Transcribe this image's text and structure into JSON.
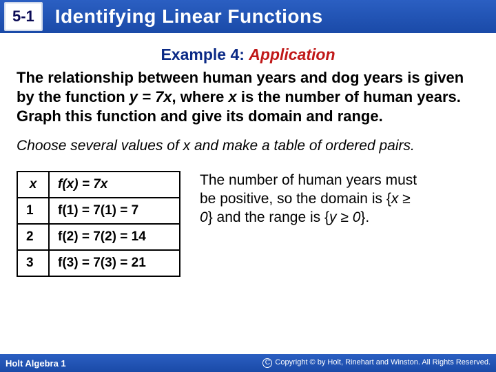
{
  "header": {
    "section": "5-1",
    "title": "Identifying Linear Functions"
  },
  "example": {
    "label": "Example 4:",
    "kind": "Application"
  },
  "problem": {
    "t1": "The relationship between human years and dog years is given by the function ",
    "eq": "y = 7x",
    "t2": ", where ",
    "xv": "x",
    "t3": " is the number of human years. Graph this function and give its domain and range."
  },
  "instruction": "Choose several values of x and make a table of ordered pairs.",
  "table": {
    "hx": "x",
    "hfx_a": "f",
    "hfx_b": "(",
    "hfx_c": "x",
    "hfx_d": ") = 7",
    "hfx_e": "x",
    "rows": [
      {
        "x": "1",
        "fx": "f(1) = 7(1) = 7"
      },
      {
        "x": "2",
        "fx": "f(2) = 7(2) = 14"
      },
      {
        "x": "3",
        "fx": "f(3) = 7(3) = 21"
      }
    ]
  },
  "explain": {
    "t1": "The number of human years must be positive, so the domain is {",
    "d": "x ≥ 0",
    "t2": "} and the range is {",
    "r": "y ≥ 0",
    "t3": "}."
  },
  "footer": {
    "book": "Holt Algebra 1",
    "copyright": "Copyright © by Holt, Rinehart and Winston. All Rights Reserved."
  }
}
